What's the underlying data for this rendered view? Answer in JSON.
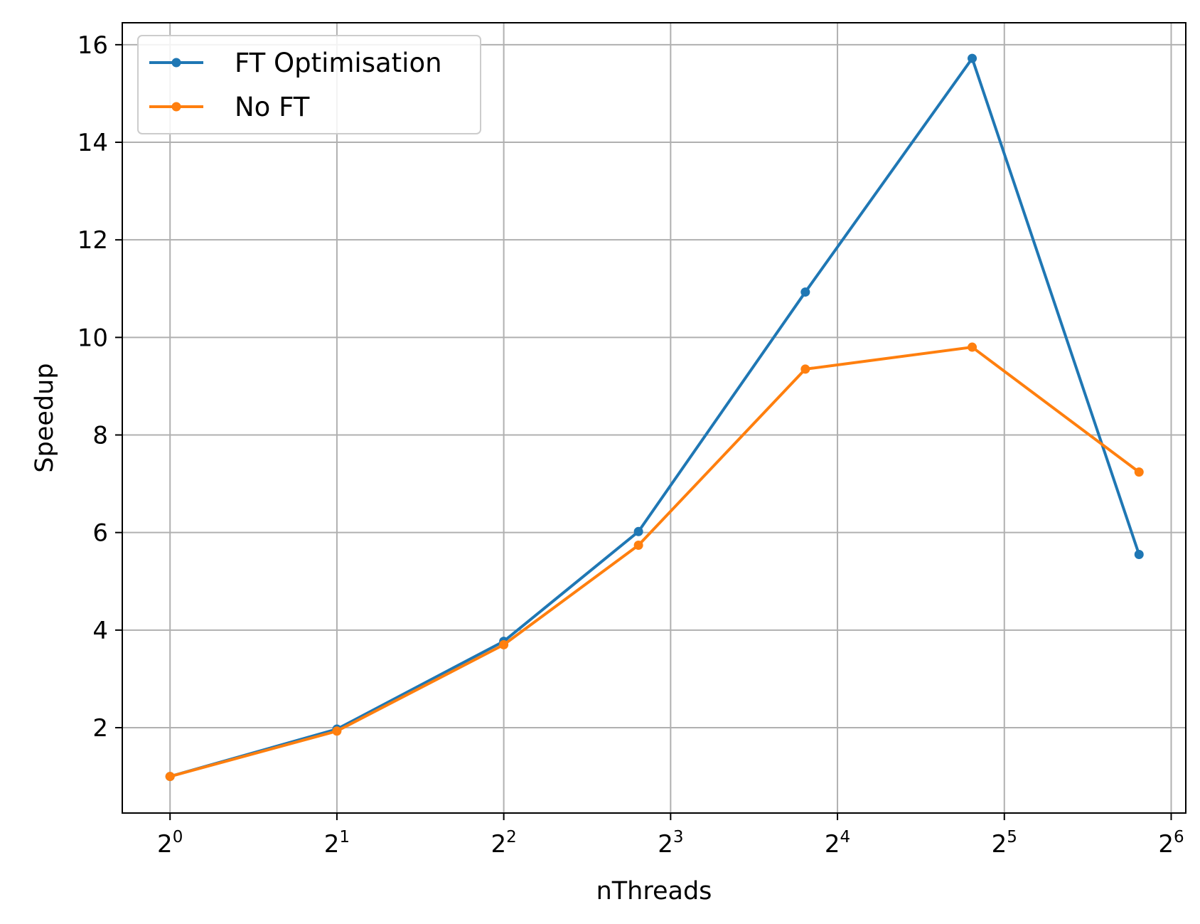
{
  "chart_data": {
    "type": "line",
    "xscale": "log2",
    "xlabel": "nThreads",
    "ylabel": "Speedup",
    "xlim": [
      0.82,
      68
    ],
    "ylim": [
      0.25,
      16.45
    ],
    "grid": true,
    "legend_position": "top-left",
    "x_ticks": [
      {
        "base": "2",
        "exp": "0",
        "value": 1
      },
      {
        "base": "2",
        "exp": "1",
        "value": 2
      },
      {
        "base": "2",
        "exp": "2",
        "value": 4
      },
      {
        "base": "2",
        "exp": "3",
        "value": 8
      },
      {
        "base": "2",
        "exp": "4",
        "value": 16
      },
      {
        "base": "2",
        "exp": "5",
        "value": 32
      },
      {
        "base": "2",
        "exp": "6",
        "value": 64
      }
    ],
    "y_ticks": [
      "2",
      "4",
      "6",
      "8",
      "10",
      "12",
      "14",
      "16"
    ],
    "x": [
      1,
      2,
      4,
      7,
      14,
      28,
      56
    ],
    "series": [
      {
        "name": "FT Optimisation",
        "color": "#1f77b4",
        "values": [
          1.0,
          1.97,
          3.77,
          6.02,
          10.93,
          15.72,
          5.55
        ]
      },
      {
        "name": "No FT",
        "color": "#ff7f0e",
        "values": [
          1.0,
          1.93,
          3.7,
          5.74,
          9.35,
          9.8,
          7.24
        ]
      }
    ]
  }
}
